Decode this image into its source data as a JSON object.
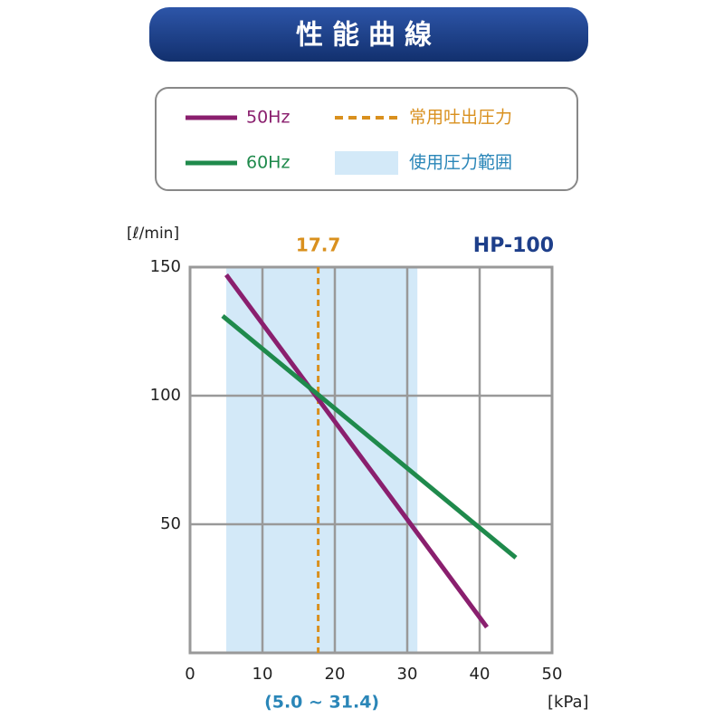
{
  "chart_data": {
    "type": "line",
    "title": "性能曲線",
    "model": "HP-100",
    "ylabel": "[ℓ/min]",
    "xlabel": "[kPa]",
    "xlim": [
      0,
      50
    ],
    "xticks": [
      0,
      10,
      20,
      30,
      40,
      50
    ],
    "ylim": [
      0,
      150
    ],
    "yticks": [
      50,
      100,
      150
    ],
    "grid": true,
    "series": [
      {
        "name": "50Hz",
        "color": "#8a1f6e",
        "x": [
          5,
          41
        ],
        "values": [
          147,
          10
        ]
      },
      {
        "name": "60Hz",
        "color": "#1f8a4c",
        "x": [
          4.5,
          45
        ],
        "values": [
          131,
          37
        ]
      }
    ],
    "reference_line": {
      "name": "常用吐出圧力",
      "value": 17.7,
      "color": "#d9901e"
    },
    "shaded_range": {
      "name": "使用圧力範囲",
      "range": [
        5.0,
        31.4
      ],
      "label": "(5.0 ~ 31.4)",
      "color": "#d3e9f8"
    }
  }
}
